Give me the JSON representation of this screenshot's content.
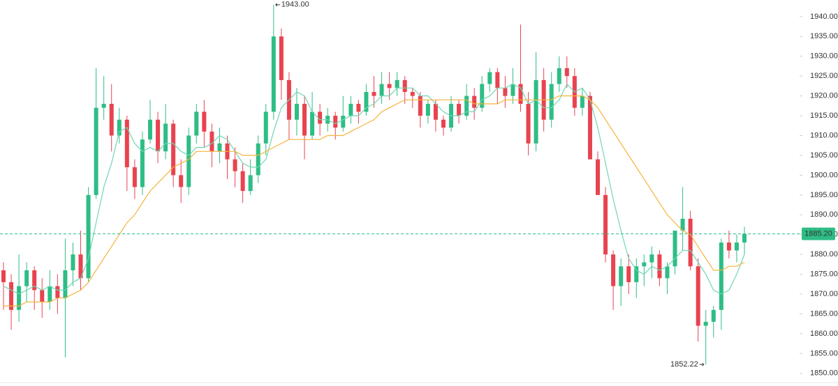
{
  "chart_data": {
    "type": "candlestick",
    "open": [
      1876,
      1873,
      1866,
      1872,
      1876,
      1871,
      1868,
      1872,
      1869,
      1876,
      1880,
      1874,
      1895,
      1917,
      1918,
      1910,
      1914,
      1902,
      1897,
      1909,
      1914,
      1906,
      1913,
      1900,
      1897,
      1910,
      1916,
      1911,
      1906,
      1908,
      1904,
      1901,
      1896,
      1900,
      1908,
      1916,
      1935,
      1924,
      1914,
      1918,
      1910,
      1916,
      1913,
      1915,
      1912,
      1915,
      1918,
      1916,
      1921,
      1920,
      1923,
      1922,
      1924,
      1921,
      1920,
      1915,
      1918,
      1914,
      1912,
      1918,
      1915,
      1920,
      1917,
      1923,
      1926,
      1922,
      1920,
      1923,
      1918,
      1908,
      1924,
      1914,
      1923,
      1927,
      1925,
      1917,
      1920,
      1904,
      1895,
      1880,
      1872,
      1877,
      1873,
      1877,
      1878,
      1880,
      1874,
      1877,
      1886,
      1889,
      1877,
      1862,
      1863,
      1866,
      1883,
      1881,
      1883
    ],
    "high": [
      1878,
      1875,
      1880,
      1878,
      1877,
      1874,
      1876,
      1875,
      1884,
      1883,
      1886,
      1897,
      1927,
      1925,
      1923,
      1917,
      1915,
      1904,
      1911,
      1919,
      1916,
      1918,
      1914,
      1904,
      1912,
      1918,
      1919,
      1913,
      1912,
      1910,
      1907,
      1903,
      1904,
      1910,
      1918,
      1943,
      1937,
      1926,
      1922,
      1920,
      1921,
      1918,
      1917,
      1916,
      1920,
      1920,
      1919,
      1923,
      1925,
      1926,
      1926,
      1926,
      1925,
      1922,
      1921,
      1919,
      1919,
      1915,
      1920,
      1919,
      1923,
      1922,
      1925,
      1927,
      1927,
      1925,
      1927,
      1938,
      1921,
      1931,
      1927,
      1926,
      1930,
      1930,
      1927,
      1922,
      1921,
      1906,
      1897,
      1881,
      1879,
      1880,
      1879,
      1880,
      1882,
      1881,
      1878,
      1886,
      1897,
      1891,
      1879,
      1866,
      1867,
      1884,
      1886,
      1885,
      1887
    ],
    "low": [
      1866,
      1861,
      1863,
      1868,
      1866,
      1864,
      1866,
      1865,
      1854,
      1872,
      1871,
      1873,
      1894,
      1914,
      1906,
      1908,
      1896,
      1894,
      1895,
      1908,
      1903,
      1904,
      1897,
      1893,
      1895,
      1908,
      1907,
      1902,
      1903,
      1899,
      1897,
      1893,
      1895,
      1898,
      1905,
      1914,
      1919,
      1909,
      1910,
      1904,
      1909,
      1910,
      1911,
      1909,
      1911,
      1913,
      1913,
      1915,
      1917,
      1918,
      1919,
      1920,
      1918,
      1917,
      1912,
      1913,
      1911,
      1910,
      1911,
      1913,
      1914,
      1914,
      1916,
      1921,
      1918,
      1917,
      1918,
      1916,
      1905,
      1906,
      1911,
      1912,
      1921,
      1922,
      1915,
      1915,
      1904,
      1895,
      1878,
      1866,
      1867,
      1870,
      1869,
      1872,
      1874,
      1872,
      1870,
      1875,
      1881,
      1876,
      1858,
      1852.22,
      1859,
      1861,
      1879,
      1878,
      1880
    ],
    "close": [
      1873,
      1866,
      1872,
      1876,
      1871,
      1868,
      1872,
      1869,
      1876,
      1880,
      1874,
      1895,
      1917,
      1918,
      1910,
      1914,
      1902,
      1897,
      1909,
      1914,
      1906,
      1913,
      1900,
      1897,
      1910,
      1916,
      1911,
      1906,
      1908,
      1904,
      1901,
      1896,
      1900,
      1908,
      1916,
      1935,
      1924,
      1914,
      1918,
      1910,
      1916,
      1913,
      1915,
      1912,
      1915,
      1918,
      1916,
      1921,
      1920,
      1923,
      1922,
      1924,
      1921,
      1920,
      1915,
      1918,
      1914,
      1912,
      1918,
      1915,
      1920,
      1917,
      1923,
      1926,
      1922,
      1920,
      1923,
      1918,
      1908,
      1924,
      1914,
      1923,
      1927,
      1925,
      1917,
      1920,
      1904,
      1895,
      1880,
      1872,
      1877,
      1873,
      1877,
      1878,
      1880,
      1874,
      1877,
      1886,
      1889,
      1877,
      1862,
      1863,
      1866,
      1883,
      1881,
      1883,
      1885.2
    ],
    "up_color": "#2ebd85",
    "down_color": "#e8434f",
    "series": [
      {
        "color": "#6fd6b5",
        "values": [
          1872,
          1871,
          1870,
          1871,
          1872,
          1871,
          1872,
          1871,
          1871,
          1873,
          1874,
          1879,
          1888,
          1897,
          1903,
          1911,
          1912,
          1908,
          1906,
          1907,
          1906,
          1908,
          1908,
          1906,
          1905,
          1907,
          1907,
          1908,
          1910,
          1909,
          1906,
          1903,
          1902,
          1902,
          1904,
          1911,
          1917,
          1919,
          1921,
          1920,
          1916,
          1914,
          1914,
          1913,
          1914,
          1915,
          1915,
          1917,
          1918,
          1920,
          1920,
          1922,
          1922,
          1922,
          1920,
          1920,
          1918,
          1916,
          1915,
          1915,
          1916,
          1916,
          1919,
          1920,
          1922,
          1922,
          1923,
          1922,
          1918,
          1919,
          1917,
          1917,
          1919,
          1923,
          1921,
          1922,
          1919,
          1912,
          1903,
          1894,
          1886,
          1879,
          1876,
          1875,
          1877,
          1876,
          1877,
          1879,
          1881,
          1881,
          1878,
          1875,
          1871,
          1870,
          1871,
          1875,
          1880
        ]
      },
      {
        "color": "#f5b33b",
        "values": [
          1867,
          1867,
          1867,
          1868,
          1868,
          1868,
          1868,
          1869,
          1869,
          1870,
          1871,
          1873,
          1876,
          1879,
          1882,
          1885,
          1888,
          1890,
          1893,
          1896,
          1898,
          1900,
          1902,
          1903,
          1904,
          1906,
          1906,
          1906,
          1906,
          1906,
          1906,
          1905,
          1905,
          1905,
          1906,
          1907,
          1908,
          1909,
          1909,
          1909,
          1909,
          1909,
          1910,
          1910,
          1910,
          1911,
          1912,
          1913,
          1914,
          1916,
          1917,
          1918,
          1919,
          1919,
          1919,
          1919,
          1919,
          1919,
          1919,
          1919,
          1919,
          1918,
          1918,
          1918,
          1918,
          1919,
          1919,
          1919,
          1919,
          1919,
          1919,
          1919,
          1920,
          1920,
          1920,
          1920,
          1919,
          1917,
          1914,
          1911,
          1908,
          1905,
          1902,
          1899,
          1896,
          1893,
          1890,
          1888,
          1886,
          1885,
          1882,
          1879,
          1876,
          1876,
          1877,
          1877,
          1878
        ]
      }
    ],
    "ylim": [
      1846.8,
      1944.2
    ],
    "yticks": [
      {
        "value": 1850,
        "label": "1850.00"
      },
      {
        "value": 1855,
        "label": "1855.00"
      },
      {
        "value": 1860,
        "label": "1860.00"
      },
      {
        "value": 1865,
        "label": "1865.00"
      },
      {
        "value": 1870,
        "label": "1870.00"
      },
      {
        "value": 1875,
        "label": "1875.00"
      },
      {
        "value": 1880,
        "label": "1880.00"
      },
      {
        "value": 1885,
        "label": "1885.00"
      },
      {
        "value": 1890,
        "label": "1890.00"
      },
      {
        "value": 1895,
        "label": "1895.00"
      },
      {
        "value": 1900,
        "label": "1900.00"
      },
      {
        "value": 1905,
        "label": "1905.00"
      },
      {
        "value": 1910,
        "label": "1910.00"
      },
      {
        "value": 1915,
        "label": "1915.00"
      },
      {
        "value": 1920,
        "label": "1920.00"
      },
      {
        "value": 1925,
        "label": "1925.00"
      },
      {
        "value": 1930,
        "label": "1930.00"
      },
      {
        "value": 1935,
        "label": "1935.00"
      },
      {
        "value": 1940,
        "label": "1940.00"
      }
    ],
    "high_label": {
      "value": 1943,
      "label": "1943.00"
    },
    "low_label": {
      "value": 1852.22,
      "label": "1852.22"
    },
    "last_price": {
      "value": 1885.2,
      "label": "1885.20",
      "color": "#2ebd85"
    }
  }
}
